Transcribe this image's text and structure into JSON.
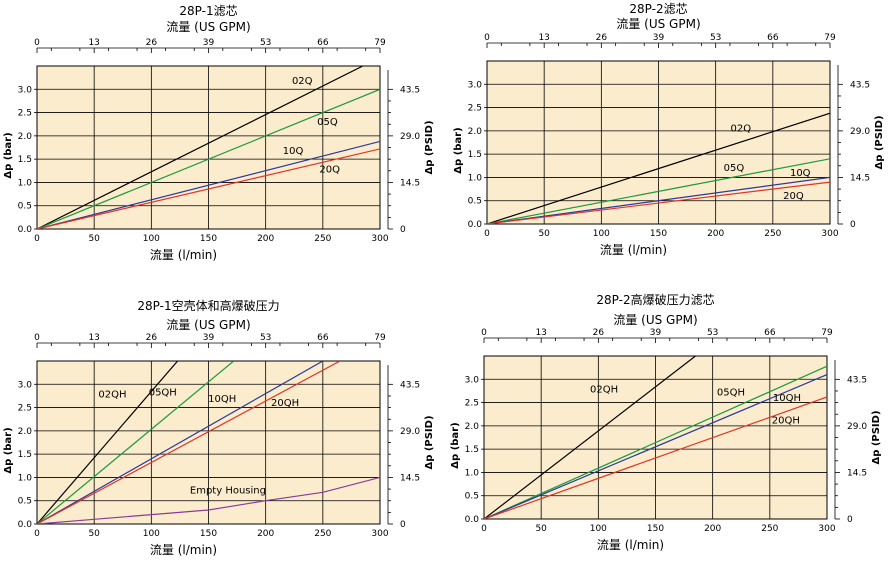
{
  "chart_data": [
    {
      "type": "line",
      "title": "28P-1滤芯",
      "top_axis_label": "流量 (US GPM)",
      "xlabel": "流量 (l/min)",
      "ylabel": "Δp (bar)",
      "right_axis_label": "Δp (PSID)",
      "xlim": [
        0,
        300
      ],
      "ylim": [
        0,
        3.5
      ],
      "x_ticks": [
        "0",
        "50",
        "100",
        "150",
        "200",
        "250",
        "300"
      ],
      "y_ticks": [
        "0.0",
        "0.5",
        "1.0",
        "1.5",
        "2.0",
        "2.5",
        "3.0"
      ],
      "top_ticks": [
        "0",
        "13",
        "26",
        "39",
        "53",
        "66",
        "79"
      ],
      "right_ticks": [
        "0",
        "14.5",
        "29.0",
        "43.5"
      ],
      "series": [
        {
          "name": "02Q",
          "color": "#000000",
          "x": [
            0,
            285
          ],
          "y": [
            0,
            3.5
          ],
          "label_at": [
            232,
            3.18
          ]
        },
        {
          "name": "05Q",
          "color": "#1a9a3a",
          "x": [
            0,
            300
          ],
          "y": [
            0,
            3.0
          ],
          "label_at": [
            254,
            2.3
          ]
        },
        {
          "name": "10Q",
          "color": "#2a3a9a",
          "x": [
            0,
            300
          ],
          "y": [
            0,
            1.88
          ],
          "label_at": [
            224,
            1.68
          ]
        },
        {
          "name": "20Q",
          "color": "#e0352a",
          "x": [
            0,
            300
          ],
          "y": [
            0,
            1.72
          ],
          "label_at": [
            256,
            1.28
          ]
        }
      ]
    },
    {
      "type": "line",
      "title": "28P-2滤芯",
      "top_axis_label": "流量 (US GPM)",
      "xlabel": "流量 (l/min)",
      "ylabel": "Δp (bar)",
      "right_axis_label": "Δp (PSID)",
      "xlim": [
        0,
        300
      ],
      "ylim": [
        0,
        3.5
      ],
      "x_ticks": [
        "0",
        "50",
        "100",
        "150",
        "200",
        "250",
        "300"
      ],
      "y_ticks": [
        "0.0",
        "0.5",
        "1.0",
        "1.5",
        "2.0",
        "2.5",
        "3.0"
      ],
      "top_ticks": [
        "0",
        "13",
        "26",
        "39",
        "53",
        "66",
        "79"
      ],
      "right_ticks": [
        "0",
        "14.5",
        "29.0",
        "43.5"
      ],
      "series": [
        {
          "name": "02Q",
          "color": "#000000",
          "x": [
            0,
            300
          ],
          "y": [
            0,
            2.38
          ],
          "label_at": [
            222,
            2.05
          ]
        },
        {
          "name": "05Q",
          "color": "#1a9a3a",
          "x": [
            0,
            300
          ],
          "y": [
            0,
            1.4
          ],
          "label_at": [
            216,
            1.2
          ]
        },
        {
          "name": "10Q",
          "color": "#2a3a9a",
          "x": [
            0,
            300
          ],
          "y": [
            0,
            1.0
          ],
          "label_at": [
            274,
            1.1
          ]
        },
        {
          "name": "20Q",
          "color": "#e0352a",
          "x": [
            0,
            300
          ],
          "y": [
            0,
            0.9
          ],
          "label_at": [
            268,
            0.6
          ]
        }
      ]
    },
    {
      "type": "line",
      "title": "28P-1空壳体和高爆破压力",
      "top_axis_label": "流量 (US GPM)",
      "xlabel": "流量 (l/min)",
      "ylabel": "Δp (bar)",
      "right_axis_label": "Δp (PSID)",
      "xlim": [
        0,
        300
      ],
      "ylim": [
        0,
        3.5
      ],
      "x_ticks": [
        "0",
        "50",
        "100",
        "150",
        "200",
        "250",
        "300"
      ],
      "y_ticks": [
        "0.0",
        "0.5",
        "1.0",
        "1.5",
        "2.0",
        "2.5",
        "3.0"
      ],
      "top_ticks": [
        "0",
        "13",
        "26",
        "39",
        "53",
        "66",
        "79"
      ],
      "right_ticks": [
        "0",
        "14.5",
        "29.0",
        "43.5"
      ],
      "series": [
        {
          "name": "02QH",
          "color": "#000000",
          "x": [
            0,
            123
          ],
          "y": [
            0,
            3.5
          ],
          "label_at": [
            66,
            2.78
          ]
        },
        {
          "name": "05QH",
          "color": "#1a9a3a",
          "x": [
            0,
            172
          ],
          "y": [
            0,
            3.5
          ],
          "label_at": [
            110,
            2.82
          ]
        },
        {
          "name": "10QH",
          "color": "#2a3a9a",
          "x": [
            0,
            250
          ],
          "y": [
            0,
            3.5
          ],
          "label_at": [
            162,
            2.68
          ]
        },
        {
          "name": "20QH",
          "color": "#e0352a",
          "x": [
            0,
            265
          ],
          "y": [
            0,
            3.5
          ],
          "label_at": [
            217,
            2.6
          ]
        },
        {
          "name": "Empty Housing",
          "color": "#8a3a9a",
          "x": [
            0,
            50,
            150,
            200,
            250,
            300
          ],
          "y": [
            0,
            0.1,
            0.3,
            0.5,
            0.68,
            1.0
          ],
          "label_at": [
            167,
            0.72
          ]
        }
      ]
    },
    {
      "type": "line",
      "title": "28P-2高爆破压力滤芯",
      "top_axis_label": "流量 (US GPM)",
      "xlabel": "流量 (l/min)",
      "ylabel": "Δp (bar)",
      "right_axis_label": "Δp (PSID)",
      "xlim": [
        0,
        300
      ],
      "ylim": [
        0,
        3.5
      ],
      "x_ticks": [
        "0",
        "50",
        "100",
        "150",
        "200",
        "250",
        "300"
      ],
      "y_ticks": [
        "0.0",
        "0.5",
        "1.0",
        "1.5",
        "2.0",
        "2.5",
        "3.0"
      ],
      "top_ticks": [
        "0",
        "13",
        "26",
        "39",
        "53",
        "66",
        "79"
      ],
      "right_ticks": [
        "0",
        "14.5",
        "29.0",
        "43.5"
      ],
      "series": [
        {
          "name": "02QH",
          "color": "#000000",
          "x": [
            0,
            185
          ],
          "y": [
            0,
            3.5
          ],
          "label_at": [
            105,
            2.78
          ]
        },
        {
          "name": "05QH",
          "color": "#1a9a3a",
          "x": [
            0,
            300
          ],
          "y": [
            0,
            3.28
          ],
          "label_at": [
            216,
            2.72
          ]
        },
        {
          "name": "10QH",
          "color": "#2a3a9a",
          "x": [
            0,
            300
          ],
          "y": [
            0,
            3.1
          ],
          "label_at": [
            265,
            2.6
          ]
        },
        {
          "name": "20QH",
          "color": "#e0352a",
          "x": [
            0,
            300
          ],
          "y": [
            0,
            2.62
          ],
          "label_at": [
            264,
            2.12
          ]
        }
      ]
    }
  ]
}
